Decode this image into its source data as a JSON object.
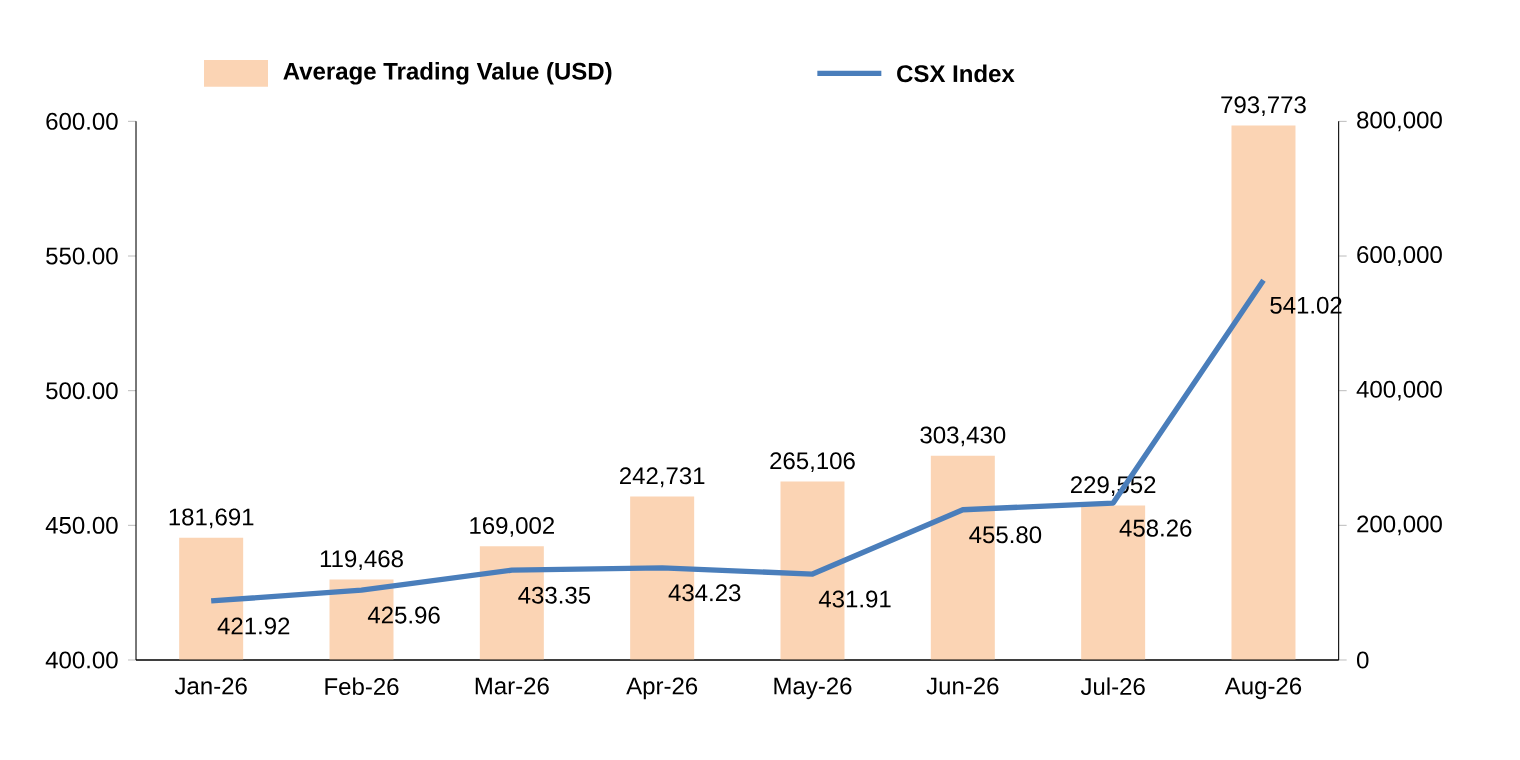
{
  "chart_data": {
    "type": "bar",
    "categories": [
      "Jan-26",
      "Feb-26",
      "Mar-26",
      "Apr-26",
      "May-26",
      "Jun-26",
      "Jul-26",
      "Aug-26"
    ],
    "series": [
      {
        "name": "Average Trading Value (USD)",
        "axis": "y2",
        "color": "#fbd4b4",
        "values": [
          181691,
          119468,
          169002,
          242731,
          265106,
          303430,
          229552,
          793773
        ],
        "value_labels": [
          "181,691",
          "119,468",
          "169,002",
          "242,731",
          "265,106",
          "303,430",
          "229,552",
          "793,773"
        ]
      },
      {
        "name": "CSX Index",
        "type": "line",
        "axis": "y",
        "color": "#4a7ebb",
        "values": [
          421.92,
          425.96,
          433.35,
          434.23,
          431.91,
          455.8,
          458.26,
          541.02
        ],
        "value_labels": [
          "421.92",
          "425.96",
          "433.35",
          "434.23",
          "431.91",
          "455.80",
          "458.26",
          "541.02"
        ]
      }
    ],
    "ylim": [
      400,
      600
    ],
    "yticks": [
      {
        "value": 400,
        "label": "400.00"
      },
      {
        "value": 450,
        "label": "450.00"
      },
      {
        "value": 500,
        "label": "500.00"
      },
      {
        "value": 550,
        "label": "550.00"
      },
      {
        "value": 600,
        "label": "600.00"
      }
    ],
    "y2lim": [
      0,
      800000
    ],
    "y2ticks": [
      0,
      {
        "value": 200000,
        "label": "200,000"
      },
      {
        "value": 400000,
        "label": "400,000"
      },
      {
        "value": 600000,
        "label": "600,000"
      },
      {
        "value": 800000,
        "label": "800,000"
      }
    ],
    "legend": "top"
  }
}
